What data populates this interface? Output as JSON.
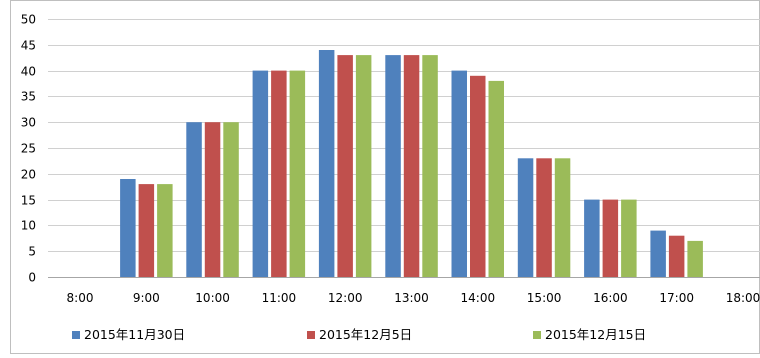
{
  "chart_data": {
    "type": "bar",
    "title": "",
    "xlabel": "",
    "ylabel": "",
    "ylim": [
      0,
      50
    ],
    "yticks": [
      0,
      5,
      10,
      15,
      20,
      25,
      30,
      35,
      40,
      45,
      50
    ],
    "categories": [
      "8:00",
      "9:00",
      "10:00",
      "11:00",
      "12:00",
      "13:00",
      "14:00",
      "15:00",
      "16:00",
      "17:00",
      "18:00"
    ],
    "grid": true,
    "legend_position": "bottom",
    "series": [
      {
        "name": "2015年11月30日",
        "color": "#4F81BD",
        "values": [
          0,
          19,
          30,
          40,
          44,
          43,
          40,
          23,
          15,
          9,
          0
        ]
      },
      {
        "name": "2015年12月5日",
        "color": "#C0504D",
        "values": [
          0,
          18,
          30,
          40,
          43,
          43,
          39,
          23,
          15,
          8,
          0
        ]
      },
      {
        "name": "2015年12月15日",
        "color": "#9BBB59",
        "values": [
          0,
          18,
          30,
          40,
          43,
          43,
          38,
          23,
          15,
          7,
          0
        ]
      }
    ]
  }
}
